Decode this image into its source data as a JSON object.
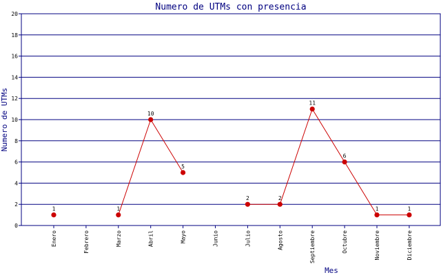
{
  "chart_data": {
    "type": "line",
    "title": "Numero de UTMs con presencia",
    "xlabel": "Mes",
    "ylabel": "Numero de UTMs",
    "categories": [
      "Enero",
      "Febrero",
      "Marzo",
      "Abril",
      "Mayo",
      "Junio",
      "Julio",
      "Agosto",
      "Septiembre",
      "Octubre",
      "Noviembre",
      "Diciembre"
    ],
    "values": [
      1,
      null,
      1,
      10,
      5,
      null,
      2,
      2,
      11,
      6,
      1,
      1
    ],
    "ylim": [
      0,
      20
    ],
    "yticks": [
      0,
      2,
      4,
      6,
      8,
      10,
      12,
      14,
      16,
      18,
      20
    ],
    "grid": "horizontal",
    "colors": {
      "line": "#cc0000",
      "marker": "#cc0000",
      "grid": "#000080",
      "axis": "#000080"
    }
  }
}
